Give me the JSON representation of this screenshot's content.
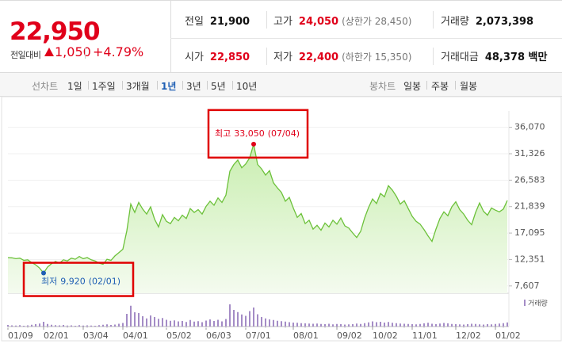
{
  "header": {
    "price": "22,950",
    "change_label": "전일대비",
    "change": "1,050",
    "change_rate": "+4.79%",
    "color": "#e0001a"
  },
  "stats": [
    {
      "label": "전일",
      "value": "21,900",
      "color": "#111111"
    },
    {
      "label": "고가",
      "value": "24,050",
      "note": "(상한가 28,450)",
      "color": "#e0001a"
    },
    {
      "label": "거래량",
      "value": "2,073,398",
      "color": "#111111"
    },
    {
      "label": "시가",
      "value": "22,850",
      "color": "#e0001a"
    },
    {
      "label": "저가",
      "value": "22,400",
      "note": "(하한가 15,350)",
      "color": "#e0001a"
    },
    {
      "label": "거래대금",
      "value": "48,378 백만",
      "color": "#111111"
    }
  ],
  "tabs": {
    "line_label": "선차트",
    "line_periods": [
      "1일",
      "1주일",
      "3개월",
      "1년",
      "3년",
      "5년",
      "10년"
    ],
    "selected": "1년",
    "candle_label": "봉차트",
    "candle_periods": [
      "일봉",
      "주봉",
      "월봉"
    ]
  },
  "chart_data": {
    "type": "line",
    "color": "#6cc13a",
    "fill": true,
    "grid": true,
    "ylim": [
      6300,
      39000
    ],
    "yticks": [
      {
        "value": 36070,
        "label": "36,070"
      },
      {
        "value": 31326,
        "label": "31,326"
      },
      {
        "value": 26583,
        "label": "26,583"
      },
      {
        "value": 21839,
        "label": "21,839"
      },
      {
        "value": 17095,
        "label": "17,095"
      },
      {
        "value": 12351,
        "label": "12,351"
      },
      {
        "value": 7607,
        "label": "7,607"
      }
    ],
    "categories": [
      "01/09",
      null,
      null,
      null,
      null,
      null,
      null,
      null,
      null,
      "02/01",
      null,
      null,
      null,
      null,
      null,
      null,
      null,
      null,
      null,
      "03/04",
      null,
      null,
      null,
      null,
      null,
      null,
      null,
      null,
      null,
      "04/01",
      null,
      null,
      null,
      null,
      null,
      null,
      null,
      null,
      null,
      null,
      "05/02",
      null,
      null,
      null,
      null,
      null,
      null,
      null,
      null,
      null,
      "06/03",
      null,
      null,
      null,
      null,
      null,
      null,
      null,
      null,
      null,
      "07/01",
      null,
      null,
      null,
      null,
      null,
      null,
      null,
      null,
      null,
      null,
      null,
      "08/01",
      null,
      null,
      null,
      null,
      null,
      null,
      null,
      null,
      null,
      null,
      "09/02",
      null,
      null,
      null,
      null,
      null,
      null,
      null,
      null,
      "10/02",
      null,
      null,
      null,
      null,
      null,
      null,
      null,
      null,
      null,
      "11/01",
      null,
      null,
      null,
      null,
      null,
      null,
      null,
      null,
      null,
      null,
      "12/02",
      null,
      null,
      null,
      null,
      null,
      null,
      null,
      null,
      null,
      "01/02",
      null,
      null,
      null
    ],
    "values": [
      12700,
      12650,
      12500,
      12600,
      12200,
      12300,
      11800,
      11400,
      10800,
      9920,
      11000,
      11600,
      12000,
      11700,
      12300,
      12100,
      12600,
      12400,
      12900,
      12500,
      12700,
      12300,
      12100,
      11700,
      11500,
      12400,
      12200,
      13000,
      13600,
      14200,
      17500,
      22300,
      20800,
      22600,
      21400,
      20500,
      21800,
      19600,
      18200,
      20400,
      19200,
      18800,
      19900,
      19300,
      20300,
      19700,
      21500,
      20800,
      21300,
      20500,
      21900,
      22800,
      22100,
      23400,
      22600,
      23900,
      28200,
      29400,
      30200,
      28800,
      29500,
      30600,
      33050,
      29400,
      28600,
      27500,
      28300,
      26100,
      25200,
      24400,
      22800,
      23500,
      21600,
      19900,
      20600,
      18800,
      19400,
      17800,
      18500,
      17600,
      18900,
      18200,
      19400,
      18700,
      19800,
      18400,
      18000,
      17100,
      16300,
      17400,
      19800,
      21700,
      23200,
      22400,
      24200,
      23600,
      25600,
      24800,
      23700,
      22300,
      22900,
      21500,
      20100,
      19200,
      18700,
      17700,
      16600,
      15600,
      17800,
      19700,
      20900,
      20200,
      21800,
      22700,
      21300,
      20500,
      19400,
      18600,
      20800,
      22500,
      21000,
      20300,
      21600,
      21200,
      20900,
      21400,
      22950
    ],
    "volume": {
      "name": "거래량",
      "color": "#a48cc6",
      "values": [
        800000,
        600000,
        500000,
        700000,
        400000,
        600000,
        900000,
        1200000,
        1500000,
        2400000,
        1300000,
        900000,
        700000,
        600000,
        800000,
        500000,
        600000,
        400000,
        700000,
        500000,
        600000,
        500000,
        400000,
        700000,
        900000,
        1100000,
        800000,
        1000000,
        1400000,
        1800000,
        6400000,
        10500000,
        7200000,
        6800000,
        5200000,
        4100000,
        5600000,
        4800000,
        3900000,
        4300000,
        3400000,
        2900000,
        3100000,
        2600000,
        2800000,
        2300000,
        3300000,
        2500000,
        2700000,
        2200000,
        3000000,
        3600000,
        2800000,
        3400000,
        2600000,
        3800000,
        11200000,
        8400000,
        7300000,
        6100000,
        5400000,
        7800000,
        9600000,
        6200000,
        4800000,
        4100000,
        3600000,
        3300000,
        2900000,
        2700000,
        2500000,
        2200000,
        2000000,
        1900000,
        1700000,
        1600000,
        1500000,
        1400000,
        1500000,
        1300000,
        1200000,
        1400000,
        1100000,
        1300000,
        1200000,
        1000000,
        1100000,
        1200000,
        1500000,
        1300000,
        1700000,
        2100000,
        2600000,
        2200000,
        2400000,
        2000000,
        2300000,
        1900000,
        1700000,
        1500000,
        1400000,
        1300000,
        1200000,
        1100000,
        1300000,
        1600000,
        1900000,
        1400000,
        1200000,
        1500000,
        1800000,
        1600000,
        1300000,
        1200000,
        1100000,
        1000000,
        1200000,
        1400000,
        1300000,
        1100000,
        1000000,
        1200000,
        1100000,
        1300000,
        1500000,
        1700000,
        2073398
      ]
    },
    "annotations": [
      {
        "label": "최고",
        "value": 33050,
        "value_label": "33,050",
        "date": "(07/04)",
        "color": "#e0001a"
      },
      {
        "label": "최저",
        "value": 9920,
        "value_label": "9,920",
        "date": "(02/01)",
        "color": "#1f5fb4"
      }
    ]
  }
}
